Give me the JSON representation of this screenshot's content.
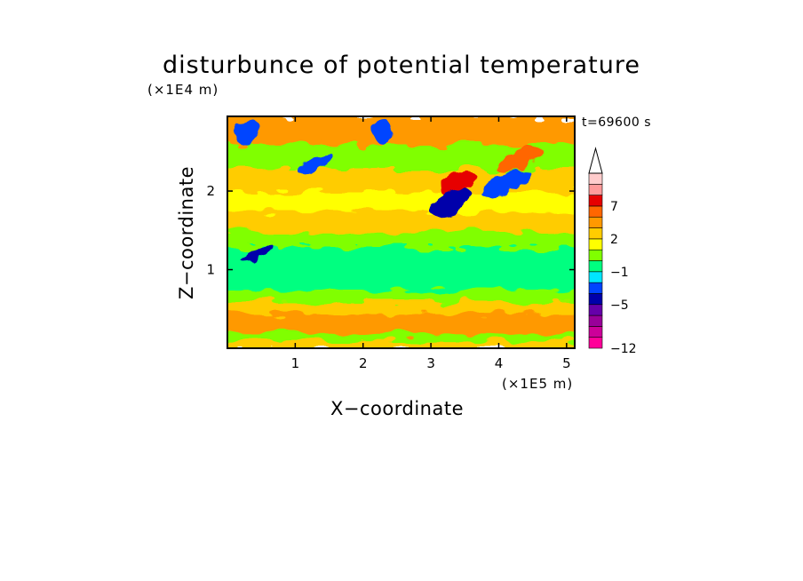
{
  "chart_data": {
    "type": "heatmap",
    "title": "disturbunce of potential temperature",
    "xlabel": "X−coordinate",
    "ylabel": "Z−coordinate",
    "x_unit": "(×1E5 m)",
    "y_unit": "(×1E4 m)",
    "time_label": "t=69600 s",
    "xlim": [
      0,
      5.12
    ],
    "ylim": [
      0,
      2.95
    ],
    "x_ticks": [
      1,
      2,
      3,
      4,
      5
    ],
    "y_ticks": [
      1,
      2
    ],
    "colorbar": {
      "colors": [
        "#ff0099",
        "#cc0099",
        "#990099",
        "#6600aa",
        "#0000aa",
        "#0044ff",
        "#00e6ff",
        "#00ff80",
        "#80ff00",
        "#ffff00",
        "#ffcc00",
        "#ff9900",
        "#ff6600",
        "#e60000",
        "#ff9a9a",
        "#ffcccc"
      ],
      "labels": [
        {
          "text": "−12",
          "value": -12
        },
        {
          "text": "−5",
          "value": -5
        },
        {
          "text": "−1",
          "value": -1
        },
        {
          "text": "2",
          "value": 2
        },
        {
          "text": "7",
          "value": 7
        }
      ],
      "extend_max": true
    },
    "field": {
      "bands": [
        {
          "z_from": 0.0,
          "z_to": 0.1,
          "value": 2
        },
        {
          "z_from": 0.1,
          "z_to": 0.2,
          "value": 0
        },
        {
          "z_from": 0.2,
          "z_to": 0.45,
          "value": 3
        },
        {
          "z_from": 0.45,
          "z_to": 0.6,
          "value": 2
        },
        {
          "z_from": 0.6,
          "z_to": 0.75,
          "value": 0
        },
        {
          "z_from": 0.75,
          "z_to": 0.95,
          "value": -0.5
        },
        {
          "z_from": 0.95,
          "z_to": 1.3,
          "value": -1
        },
        {
          "z_from": 1.3,
          "z_to": 1.5,
          "value": 0
        },
        {
          "z_from": 1.5,
          "z_to": 1.75,
          "value": 2
        },
        {
          "z_from": 1.75,
          "z_to": 2.0,
          "value": 1
        },
        {
          "z_from": 2.0,
          "z_to": 2.3,
          "value": 2
        },
        {
          "z_from": 2.3,
          "z_to": 2.6,
          "value": 0
        },
        {
          "z_from": 2.6,
          "z_to": 2.95,
          "value": 3
        }
      ],
      "features": [
        {
          "x": 3.4,
          "z": 2.1,
          "value": 8
        },
        {
          "x": 4.3,
          "z": 2.4,
          "value": 5
        },
        {
          "x": 3.3,
          "z": 1.85,
          "value": -5
        },
        {
          "x": 4.1,
          "z": 2.1,
          "value": -4
        },
        {
          "x": 0.3,
          "z": 2.75,
          "value": -4
        },
        {
          "x": 2.3,
          "z": 2.75,
          "value": -4
        },
        {
          "x": 1.3,
          "z": 2.35,
          "value": -4
        },
        {
          "x": 0.45,
          "z": 1.2,
          "value": -5
        },
        {
          "x": 1.3,
          "z": 2.75,
          "value": 4
        }
      ]
    }
  }
}
